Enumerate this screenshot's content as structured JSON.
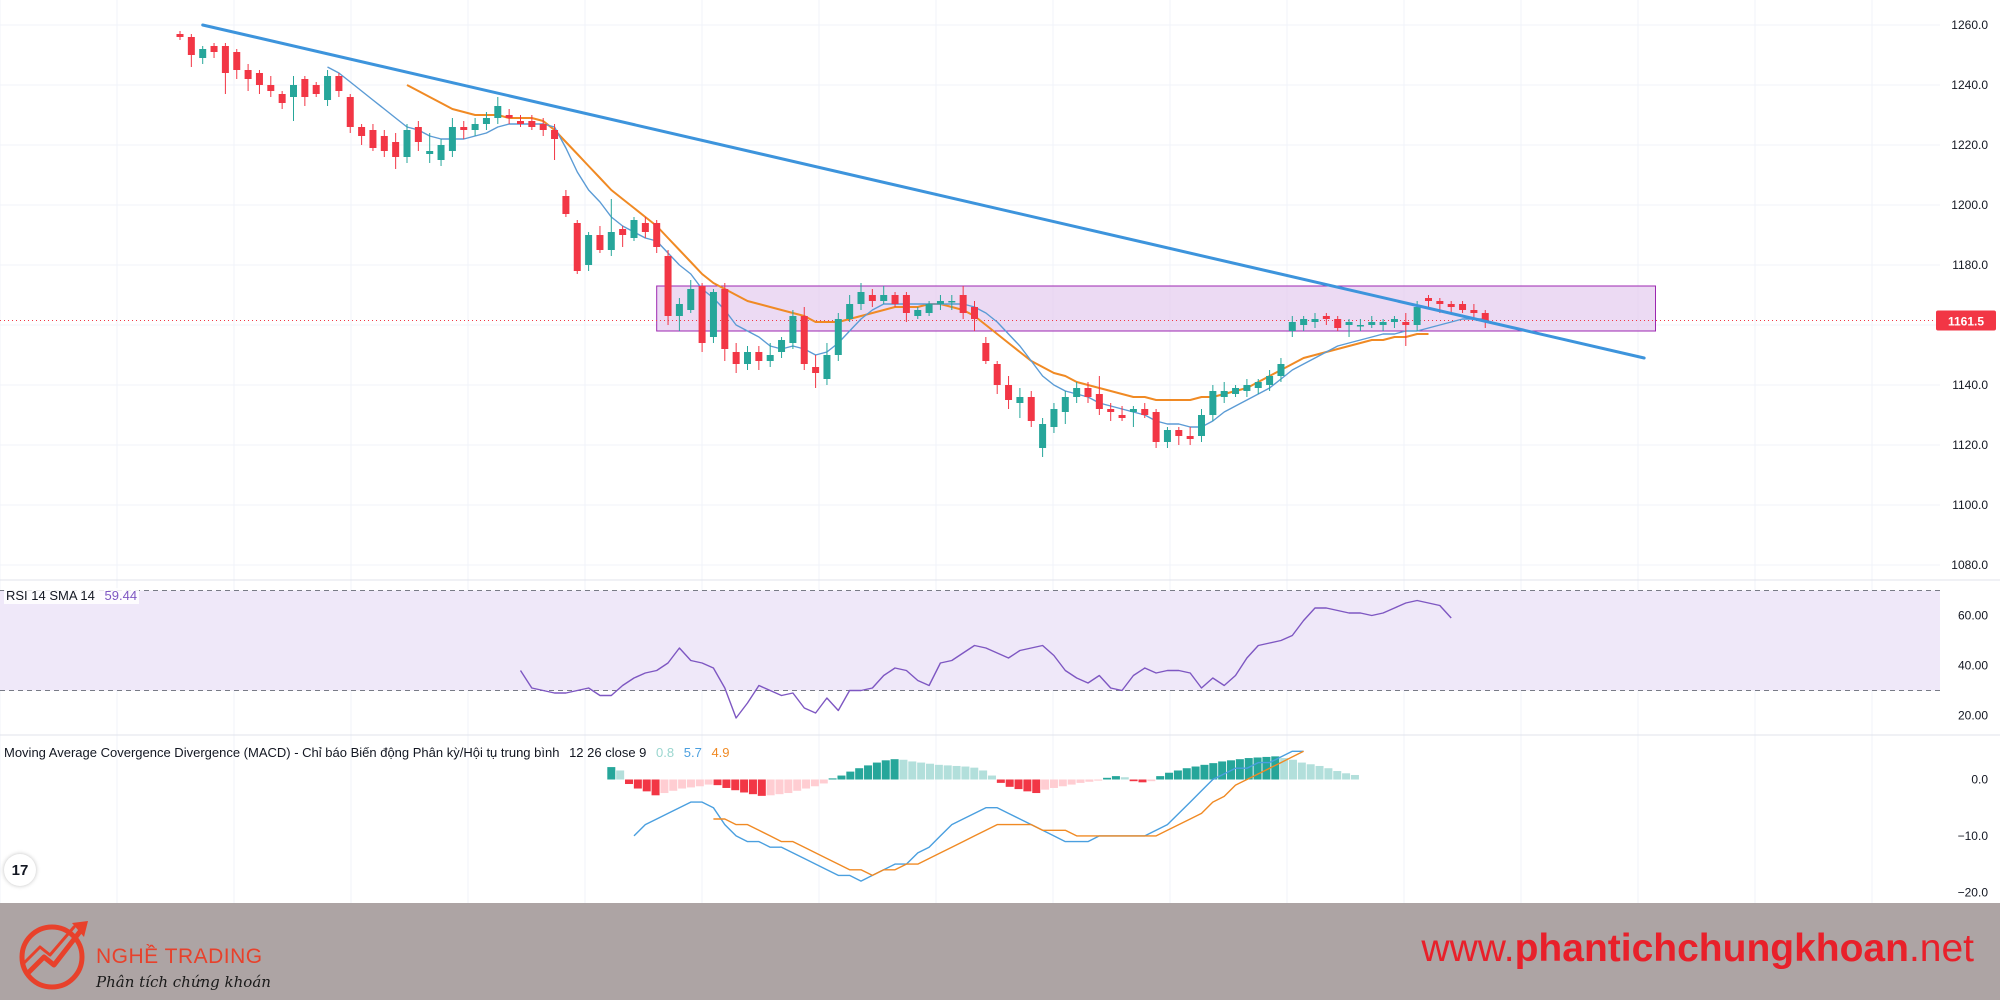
{
  "colors": {
    "bull": "#26a69a",
    "bear": "#f23645",
    "ma_fast": "#5b9bd5",
    "ma_slow": "#f08a24",
    "trendline": "#3d94dc",
    "zone_fill": "#e6cdef",
    "zone_border": "#9c27b0",
    "rsi": "#7e57c2",
    "rsi_band": "#efe8f9",
    "macd": "#4a9fdf",
    "signal": "#f08a24",
    "hist_pos_strong": "#26a69a",
    "hist_pos_weak": "#b2dfdb",
    "hist_neg_strong": "#f23645",
    "hist_neg_weak": "#ffcdd2",
    "last_price": "#f23645",
    "footer_bg": "#ada4a4",
    "brand": "#e8412b",
    "website": "#e8202a"
  },
  "chart_data": [
    {
      "type": "candlestick",
      "pane": "price",
      "ylim": [
        1075,
        1265
      ],
      "y_ticks": [
        "1260.0",
        "1240.0",
        "1220.0",
        "1200.0",
        "1180.0",
        "1160.0",
        "1140.0",
        "1120.0",
        "1100.0",
        "1080.0"
      ],
      "last_price": 1161.5,
      "last_price_label": "1161.5",
      "ohlc": [
        [
          1257,
          1258,
          1255,
          1256
        ],
        [
          1256,
          1257,
          1246,
          1250
        ],
        [
          1249,
          1253,
          1247,
          1252
        ],
        [
          1253,
          1254,
          1249,
          1251
        ],
        [
          1253,
          1254,
          1237,
          1244
        ],
        [
          1251,
          1252,
          1242,
          1245
        ],
        [
          1245,
          1247,
          1238,
          1242
        ],
        [
          1244,
          1245,
          1237,
          1240
        ],
        [
          1240,
          1243,
          1236,
          1238
        ],
        [
          1237,
          1238,
          1232,
          1234
        ],
        [
          1236,
          1243,
          1228,
          1240
        ],
        [
          1242,
          1243,
          1233,
          1236
        ],
        [
          1240,
          1241,
          1236,
          1237
        ],
        [
          1235,
          1245,
          1233,
          1243
        ],
        [
          1243,
          1244,
          1236,
          1238
        ],
        [
          1236,
          1237,
          1224,
          1226
        ],
        [
          1226,
          1227,
          1220,
          1223
        ],
        [
          1225,
          1227,
          1218,
          1219
        ],
        [
          1223,
          1225,
          1216,
          1218
        ],
        [
          1221,
          1224,
          1212,
          1216
        ],
        [
          1216,
          1227,
          1214,
          1225
        ],
        [
          1226,
          1228,
          1218,
          1221
        ],
        [
          1217,
          1224,
          1214,
          1218
        ],
        [
          1215,
          1222,
          1213,
          1220
        ],
        [
          1218,
          1229,
          1216,
          1226
        ],
        [
          1226,
          1228,
          1222,
          1225
        ],
        [
          1225,
          1229,
          1223,
          1227
        ],
        [
          1227,
          1231,
          1225,
          1229
        ],
        [
          1229,
          1236,
          1227,
          1233
        ],
        [
          1230,
          1232,
          1227,
          1229
        ],
        [
          1228,
          1230,
          1226,
          1227
        ],
        [
          1228,
          1230,
          1225,
          1226
        ],
        [
          1227,
          1229,
          1223,
          1225
        ],
        [
          1225,
          1227,
          1215,
          1222
        ],
        [
          1203,
          1205,
          1196,
          1197
        ],
        [
          1194,
          1195,
          1177,
          1178
        ],
        [
          1180,
          1191,
          1178,
          1190
        ],
        [
          1190,
          1193,
          1184,
          1185
        ],
        [
          1185,
          1202,
          1183,
          1191
        ],
        [
          1192,
          1193,
          1186,
          1190
        ],
        [
          1189,
          1196,
          1188,
          1195
        ],
        [
          1194,
          1196,
          1189,
          1191
        ],
        [
          1194,
          1195,
          1184,
          1186
        ],
        [
          1183,
          1185,
          1160,
          1163
        ],
        [
          1163,
          1169,
          1158,
          1167
        ],
        [
          1165,
          1175,
          1164,
          1172
        ],
        [
          1173,
          1174,
          1151,
          1154
        ],
        [
          1156,
          1172,
          1154,
          1171
        ],
        [
          1172,
          1174,
          1148,
          1152
        ],
        [
          1151,
          1154,
          1144,
          1147
        ],
        [
          1147,
          1153,
          1145,
          1151
        ],
        [
          1151,
          1153,
          1145,
          1148
        ],
        [
          1148,
          1154,
          1146,
          1150
        ],
        [
          1151,
          1156,
          1149,
          1155
        ],
        [
          1154,
          1165,
          1152,
          1163
        ],
        [
          1163,
          1166,
          1145,
          1147
        ],
        [
          1146,
          1150,
          1139,
          1144
        ],
        [
          1142,
          1154,
          1140,
          1150
        ],
        [
          1150,
          1164,
          1148,
          1162
        ],
        [
          1162,
          1170,
          1161,
          1167
        ],
        [
          1167,
          1174,
          1165,
          1171
        ],
        [
          1170,
          1172,
          1166,
          1168
        ],
        [
          1168,
          1173,
          1167,
          1170
        ],
        [
          1170,
          1171,
          1166,
          1167
        ],
        [
          1170,
          1171,
          1161,
          1164
        ],
        [
          1163,
          1166,
          1162,
          1165
        ],
        [
          1164,
          1168,
          1163,
          1167
        ],
        [
          1167,
          1170,
          1165,
          1168
        ],
        [
          1168,
          1170,
          1165,
          1168
        ],
        [
          1170,
          1173,
          1162,
          1164
        ],
        [
          1166,
          1168,
          1158,
          1162
        ],
        [
          1154,
          1156,
          1147,
          1148
        ],
        [
          1147,
          1148,
          1137,
          1140
        ],
        [
          1140,
          1143,
          1132,
          1135
        ],
        [
          1134,
          1139,
          1129,
          1136
        ],
        [
          1136,
          1138,
          1126,
          1128
        ],
        [
          1119,
          1129,
          1116,
          1127
        ],
        [
          1126,
          1134,
          1124,
          1132
        ],
        [
          1131,
          1138,
          1127,
          1136
        ],
        [
          1136,
          1141,
          1134,
          1139
        ],
        [
          1139,
          1141,
          1134,
          1136
        ],
        [
          1137,
          1143,
          1130,
          1132
        ],
        [
          1132,
          1134,
          1128,
          1131
        ],
        [
          1130,
          1133,
          1128,
          1129
        ],
        [
          1131,
          1133,
          1126,
          1132
        ],
        [
          1132,
          1134,
          1129,
          1130
        ],
        [
          1131,
          1132,
          1119,
          1121
        ],
        [
          1121,
          1126,
          1119,
          1125
        ],
        [
          1125,
          1126,
          1120,
          1123
        ],
        [
          1123,
          1126,
          1120,
          1122
        ],
        [
          1123,
          1132,
          1121,
          1130
        ],
        [
          1130,
          1140,
          1128,
          1138
        ],
        [
          1136,
          1141,
          1134,
          1138
        ],
        [
          1137,
          1140,
          1136,
          1139
        ],
        [
          1138,
          1142,
          1136,
          1140
        ],
        [
          1139,
          1142,
          1137,
          1141
        ],
        [
          1140,
          1145,
          1138,
          1143
        ],
        [
          1143,
          1149,
          1141,
          1147
        ],
        [
          1158,
          1163,
          1156,
          1161
        ],
        [
          1160,
          1163,
          1158,
          1162
        ],
        [
          1161,
          1164,
          1159,
          1162
        ],
        [
          1163,
          1164,
          1160,
          1162
        ],
        [
          1162,
          1163,
          1158,
          1159
        ],
        [
          1160,
          1162,
          1156,
          1161
        ],
        [
          1160,
          1162,
          1158,
          1160
        ],
        [
          1160,
          1163,
          1159,
          1161
        ],
        [
          1160,
          1162,
          1158,
          1161
        ],
        [
          1161,
          1163,
          1159,
          1162
        ],
        [
          1161,
          1164,
          1153,
          1160
        ],
        [
          1160,
          1168,
          1158,
          1166
        ],
        [
          1169,
          1170,
          1166,
          1168
        ],
        [
          1168,
          1169,
          1164,
          1167
        ],
        [
          1167,
          1168,
          1164,
          1166
        ],
        [
          1167,
          1168,
          1164,
          1165
        ],
        [
          1165,
          1167,
          1162,
          1164
        ],
        [
          1164,
          1165,
          1159,
          1161
        ]
      ],
      "ma_fast": [
        null,
        null,
        null,
        null,
        null,
        null,
        null,
        null,
        null,
        null,
        null,
        null,
        null,
        1246,
        1244,
        1241,
        1238,
        1235,
        1232,
        1229,
        1226,
        1225,
        1223,
        1222,
        1222,
        1222,
        1223,
        1224,
        1226,
        1227,
        1227,
        1227,
        1227,
        1226,
        1219,
        1211,
        1205,
        1201,
        1196,
        1193,
        1191,
        1189,
        1188,
        1184,
        1180,
        1177,
        1172,
        1169,
        1165,
        1160,
        1158,
        1156,
        1153,
        1152,
        1153,
        1152,
        1150,
        1151,
        1154,
        1158,
        1162,
        1165,
        1167,
        1167,
        1167,
        1167,
        1167,
        1167,
        1167,
        1167,
        1166,
        1164,
        1161,
        1157,
        1153,
        1148,
        1143,
        1140,
        1138,
        1137,
        1136,
        1134,
        1133,
        1132,
        1131,
        1130,
        1128,
        1127,
        1127,
        1126,
        1126,
        1128,
        1131,
        1133,
        1135,
        1137,
        1139,
        1142,
        1145,
        1147,
        1149,
        1151,
        1153,
        1154,
        1155,
        1156,
        1157,
        1157,
        1158,
        1158,
        1159,
        1160,
        1161,
        1162,
        1162,
        1162
      ],
      "ma_slow": [
        null,
        null,
        null,
        null,
        null,
        null,
        null,
        null,
        null,
        null,
        null,
        null,
        null,
        null,
        null,
        null,
        null,
        null,
        null,
        null,
        1240,
        1238,
        1236,
        1234,
        1232,
        1231,
        1230,
        1230,
        1230,
        1229,
        1229,
        1229,
        1228,
        1225,
        1221,
        1217,
        1213,
        1209,
        1205,
        1202,
        1199,
        1196,
        1193,
        1189,
        1185,
        1181,
        1177,
        1174,
        1172,
        1170,
        1168,
        1167,
        1166,
        1165,
        1164,
        1163,
        1161,
        1161,
        1161,
        1162,
        1163,
        1164,
        1165,
        1166,
        1166,
        1166,
        1167,
        1167,
        1166,
        1165,
        1163,
        1160,
        1157,
        1154,
        1151,
        1148,
        1146,
        1144,
        1143,
        1141,
        1140,
        1139,
        1138,
        1137,
        1136,
        1136,
        1135,
        1135,
        1135,
        1135,
        1136,
        1136,
        1137,
        1138,
        1139,
        1141,
        1143,
        1145,
        1147,
        1149,
        1150,
        1151,
        1152,
        1153,
        1154,
        1155,
        1155,
        1156,
        1156,
        1157,
        1157
      ],
      "trendline": [
        [
          2,
          1260
        ],
        [
          129,
          1149
        ]
      ],
      "resistance_zone": {
        "x_start": 42,
        "x_end": 130,
        "y_top": 1173,
        "y_bottom": 1158
      }
    },
    {
      "type": "line",
      "pane": "rsi",
      "title": "RSI 14 SMA 14",
      "value_label": "59.44",
      "ylim": [
        13,
        73
      ],
      "y_ticks": [
        "60.00",
        "40.00",
        "20.00"
      ],
      "band": [
        30,
        70
      ],
      "start_index": 30,
      "values": [
        38,
        31,
        30,
        29,
        29,
        30,
        31,
        28,
        28,
        32,
        35,
        37,
        38,
        41,
        47,
        42,
        41,
        39,
        31,
        19,
        25,
        32,
        30,
        28,
        29,
        23,
        21,
        27,
        22,
        30,
        30,
        31,
        36,
        39,
        38,
        34,
        32,
        41,
        42,
        45,
        48,
        47,
        45,
        43,
        46,
        47,
        48,
        44,
        38,
        35,
        33,
        36,
        31,
        30,
        36,
        39,
        37,
        38,
        38,
        37,
        31,
        35,
        32,
        36,
        43,
        48,
        49,
        50,
        52,
        58,
        63,
        63,
        62,
        61,
        61,
        60,
        61,
        63,
        65,
        66,
        65,
        64,
        59
      ]
    },
    {
      "type": "macd",
      "pane": "macd",
      "title": "Moving Average Covergence Divergence (MACD) - Chỉ báo Biến động Phân kỳ/Hội tụ trung bình",
      "params": "12 26 close 9",
      "value_labels": [
        "0.8",
        "5.7",
        "4.9"
      ],
      "ylim": [
        -21,
        7
      ],
      "y_ticks": [
        "0.0",
        "−10.0",
        "−20.0"
      ],
      "start_index": 40,
      "macd": [
        -10,
        -8,
        -7,
        -6,
        -5,
        -4,
        -4,
        -5,
        -8,
        -10,
        -11,
        -11,
        -12,
        -12,
        -13,
        -14,
        -15,
        -16,
        -17,
        -17,
        -18,
        -17,
        -16,
        -15,
        -15,
        -13,
        -12,
        -10,
        -8,
        -7,
        -6,
        -5,
        -5,
        -6,
        -7,
        -8,
        -9,
        -10,
        -11,
        -11,
        -11,
        -10,
        -10,
        -10,
        -10,
        -10,
        -9,
        -8,
        -6,
        -4,
        -2,
        0,
        1,
        2,
        2,
        3,
        3,
        4,
        5,
        5
      ],
      "signal": [
        null,
        null,
        null,
        null,
        null,
        null,
        null,
        -7,
        -7,
        -8,
        -8,
        -9,
        -10,
        -11,
        -11,
        -12,
        -13,
        -14,
        -15,
        -16,
        -16,
        -17,
        -16,
        -16,
        -15,
        -15,
        -14,
        -13,
        -12,
        -11,
        -10,
        -9,
        -8,
        -8,
        -8,
        -8,
        -9,
        -9,
        -9,
        -10,
        -10,
        -10,
        -10,
        -10,
        -10,
        -10,
        -10,
        -9,
        -8,
        -7,
        -6,
        -4,
        -3,
        -1,
        0,
        1,
        2,
        3,
        4,
        5
      ],
      "histogram": [
        2.2,
        1.6,
        -0.8,
        -1.6,
        -2.1,
        -2.8,
        -2.4,
        -2.0,
        -1.6,
        -1.4,
        -1.2,
        -0.9,
        -1.0,
        -1.5,
        -1.9,
        -2.3,
        -2.6,
        -2.9,
        -2.8,
        -2.6,
        -2.4,
        -2.0,
        -1.6,
        -1.2,
        -0.7,
        0.2,
        0.7,
        1.4,
        2.0,
        2.5,
        3.0,
        3.4,
        3.6,
        3.5,
        3.2,
        3.0,
        2.8,
        2.6,
        2.5,
        2.4,
        2.3,
        2.1,
        1.6,
        0.7,
        -0.6,
        -1.3,
        -1.7,
        -2.1,
        -2.4,
        -1.8,
        -1.5,
        -1.2,
        -0.9,
        -0.6,
        -0.4,
        -0.2,
        0.3,
        0.6,
        0.4,
        -0.3,
        -0.5,
        -0.3,
        0.6,
        1.2,
        1.6,
        2.0,
        2.3,
        2.6,
        2.9,
        3.2,
        3.4,
        3.6,
        3.8,
        3.9,
        4.0,
        4.1,
        3.8,
        3.5,
        3.0,
        2.7,
        2.4,
        2.0,
        1.5,
        1.1,
        0.8
      ]
    }
  ],
  "labels": {
    "rsi_title": "RSI 14 SMA 14",
    "rsi_value": "59.44",
    "macd_title": "Moving Average Covergence Divergence (MACD) - Chỉ báo Biến động Phân kỳ/Hội tụ trung bình",
    "macd_params": "12 26 close 9",
    "macd_hist_value": "0.8",
    "macd_value": "5.7",
    "macd_signal_value": "4.9",
    "tv_logo": "17"
  },
  "footer": {
    "brand_name": "NGHỀ TRADING",
    "tagline": "Phân tích chứng khoán",
    "website_prefix": "www.",
    "website_bold": "phantichchungkhoan",
    "website_suffix": ".net"
  }
}
